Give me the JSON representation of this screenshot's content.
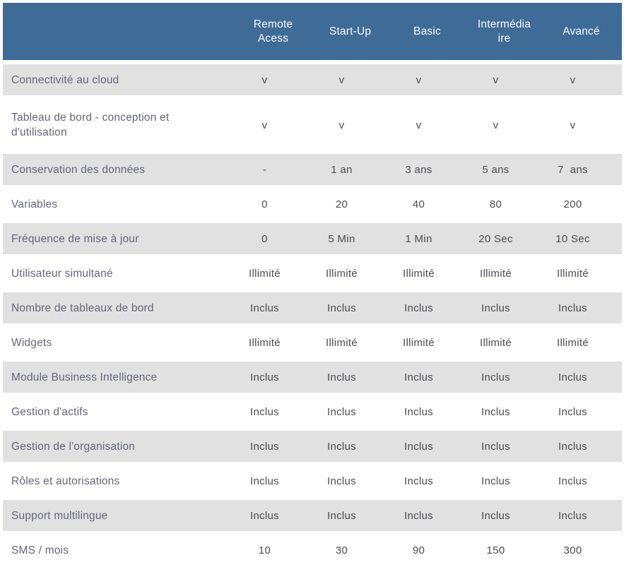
{
  "table": {
    "colors": {
      "header_bg": "#3e6c97",
      "shaded_row_bg": "#e1e1e1",
      "label_text": "#64667a",
      "value_text": "#4b4b52",
      "header_text": "#fafbfc",
      "page_bg": "#ffffff"
    },
    "columns": [
      "Remote Acess",
      "Start-Up",
      "Basic",
      "Intermédiaire",
      "Avancé"
    ],
    "rows": [
      {
        "label": "Connectivité au cloud",
        "values": [
          "v",
          "v",
          "v",
          "v",
          "v"
        ],
        "shaded": true,
        "tall": false
      },
      {
        "label": "Tableau de bord - conception et d'utilisation",
        "values": [
          "v",
          "v",
          "v",
          "v",
          "v"
        ],
        "shaded": false,
        "tall": true
      },
      {
        "label": "Conservation des données",
        "values": [
          "-",
          "1 an",
          "3 ans",
          "5 ans",
          "7  ans"
        ],
        "shaded": true,
        "tall": false
      },
      {
        "label": "Variables",
        "values": [
          "0",
          "20",
          "40",
          "80",
          "200"
        ],
        "shaded": false,
        "tall": false
      },
      {
        "label": "Fréquence de mise à jour",
        "values": [
          "0",
          "5 Min",
          "1 Min",
          "20 Sec",
          "10 Sec"
        ],
        "shaded": true,
        "tall": false
      },
      {
        "label": "Utilisateur simultané",
        "values": [
          "Illimité",
          "Illimité",
          "Illimité",
          "Illimité",
          "Illimité"
        ],
        "shaded": false,
        "tall": false
      },
      {
        "label": "Nombre de tableaux de bord",
        "values": [
          "Inclus",
          "Inclus",
          "Inclus",
          "Inclus",
          "Inclus"
        ],
        "shaded": true,
        "tall": false
      },
      {
        "label": "Widgets",
        "values": [
          "Illimité",
          "Illimité",
          "Illimité",
          "Illimité",
          "Illimité"
        ],
        "shaded": false,
        "tall": false
      },
      {
        "label": "Module Business Intelligence",
        "values": [
          "Inclus",
          "Inclus",
          "Inclus",
          "Inclus",
          "Inclus"
        ],
        "shaded": true,
        "tall": false
      },
      {
        "label": "Gestion d'actifs",
        "values": [
          "Inclus",
          "Inclus",
          "Inclus",
          "Inclus",
          "Inclus"
        ],
        "shaded": false,
        "tall": false
      },
      {
        "label": "Gestion de l'organisation",
        "values": [
          "Inclus",
          "Inclus",
          "Inclus",
          "Inclus",
          "Inclus"
        ],
        "shaded": true,
        "tall": false
      },
      {
        "label": "Rôles et autorisations",
        "values": [
          "Inclus",
          "Inclus",
          "Inclus",
          "Inclus",
          "Inclus"
        ],
        "shaded": false,
        "tall": false
      },
      {
        "label": "Support multilingue",
        "values": [
          "Inclus",
          "Inclus",
          "Inclus",
          "Inclus",
          "Inclus"
        ],
        "shaded": true,
        "tall": false
      },
      {
        "label": "SMS / mois",
        "values": [
          "10",
          "30",
          "90",
          "150",
          "300"
        ],
        "shaded": false,
        "tall": false
      }
    ]
  }
}
